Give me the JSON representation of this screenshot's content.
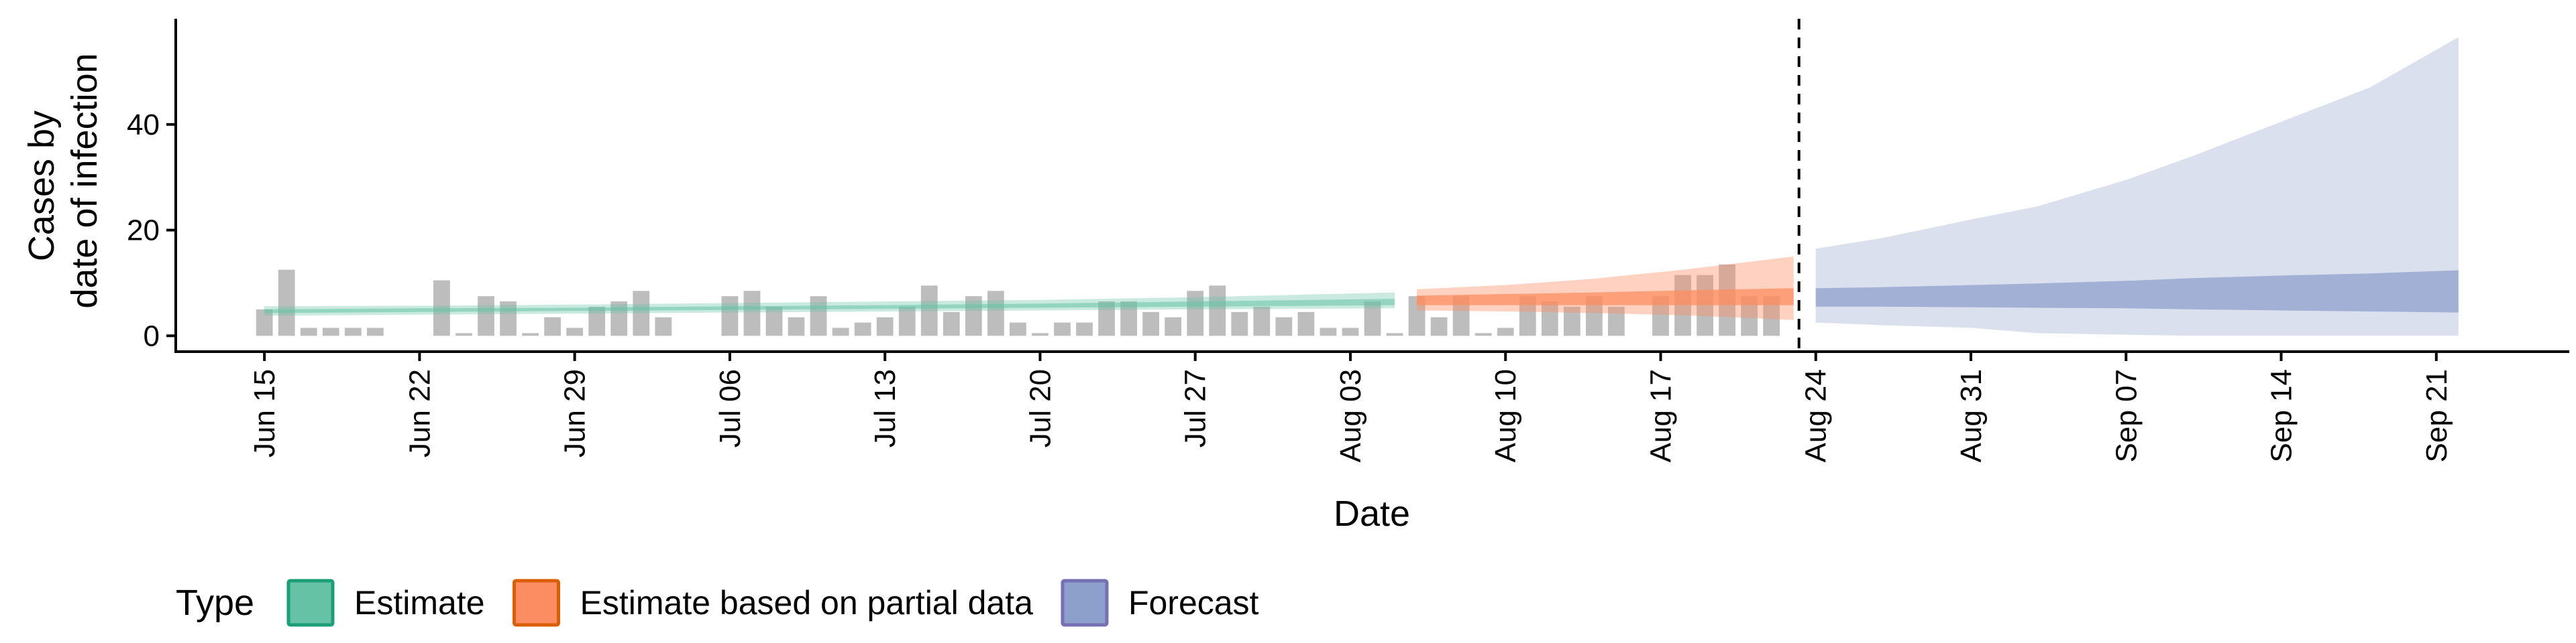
{
  "chart_data": {
    "type": "area",
    "xlabel": "Date",
    "ylabel_line1": "Cases by",
    "ylabel_line2": "date of infection",
    "x_range": [
      "2020-06-11",
      "2020-09-27"
    ],
    "ylim": [
      -3,
      60
    ],
    "y_ticks": [
      0,
      20,
      40
    ],
    "x_ticks": [
      {
        "date": "2020-06-15",
        "label": "Jun 15"
      },
      {
        "date": "2020-06-22",
        "label": "Jun 22"
      },
      {
        "date": "2020-06-29",
        "label": "Jun 29"
      },
      {
        "date": "2020-07-06",
        "label": "Jul 06"
      },
      {
        "date": "2020-07-13",
        "label": "Jul 13"
      },
      {
        "date": "2020-07-20",
        "label": "Jul 20"
      },
      {
        "date": "2020-07-27",
        "label": "Jul 27"
      },
      {
        "date": "2020-08-03",
        "label": "Aug 03"
      },
      {
        "date": "2020-08-10",
        "label": "Aug 10"
      },
      {
        "date": "2020-08-17",
        "label": "Aug 17"
      },
      {
        "date": "2020-08-24",
        "label": "Aug 24"
      },
      {
        "date": "2020-08-31",
        "label": "Aug 31"
      },
      {
        "date": "2020-09-07",
        "label": "Sep 07"
      },
      {
        "date": "2020-09-14",
        "label": "Sep 14"
      },
      {
        "date": "2020-09-21",
        "label": "Sep 21"
      }
    ],
    "cutoff_date": "2020-08-23",
    "bars": {
      "start_date": "2020-06-15",
      "color": "#bdbdbd",
      "values": [
        5,
        12.5,
        1.5,
        1.5,
        1.5,
        1.5,
        0,
        0,
        10.5,
        0.5,
        7.5,
        6.5,
        0.5,
        3.5,
        1.5,
        5.5,
        6.5,
        8.5,
        3.5,
        0,
        0,
        7.5,
        8.5,
        5.5,
        3.5,
        7.5,
        1.5,
        2.5,
        3.5,
        5.5,
        9.5,
        4.5,
        7.5,
        8.5,
        2.5,
        0.5,
        2.5,
        2.5,
        6.5,
        6.5,
        4.5,
        3.5,
        8.5,
        9.5,
        4.5,
        5.5,
        3.5,
        4.5,
        1.5,
        1.5,
        6.5,
        0.5,
        7.5,
        3.5,
        7.5,
        0.5,
        1.5,
        7.5,
        6.5,
        5.5,
        7.5,
        5.5,
        0,
        7.5,
        11.5,
        11.5,
        13.5,
        7.5,
        7.5
      ]
    },
    "series": [
      {
        "name": "Estimate",
        "fill": "#66c2a5",
        "stroke": "#1b9e77",
        "outer_opacity": 0.35,
        "inner_opacity": 0.55,
        "points": [
          {
            "date": "2020-06-15",
            "lo90": 3.8,
            "lo50": 4.3,
            "hi50": 5.0,
            "hi90": 5.6
          },
          {
            "date": "2020-06-22",
            "lo90": 4.0,
            "lo50": 4.5,
            "hi50": 5.2,
            "hi90": 5.7
          },
          {
            "date": "2020-06-29",
            "lo90": 4.2,
            "lo50": 4.7,
            "hi50": 5.3,
            "hi90": 5.9
          },
          {
            "date": "2020-07-06",
            "lo90": 4.4,
            "lo50": 4.9,
            "hi50": 5.6,
            "hi90": 6.2
          },
          {
            "date": "2020-07-13",
            "lo90": 4.6,
            "lo50": 5.1,
            "hi50": 5.8,
            "hi90": 6.5
          },
          {
            "date": "2020-07-20",
            "lo90": 4.8,
            "lo50": 5.3,
            "hi50": 6.1,
            "hi90": 6.8
          },
          {
            "date": "2020-07-27",
            "lo90": 5.0,
            "lo50": 5.5,
            "hi50": 6.5,
            "hi90": 7.3
          },
          {
            "date": "2020-08-05",
            "lo90": 5.2,
            "lo50": 5.8,
            "hi50": 7.0,
            "hi90": 8.2
          }
        ]
      },
      {
        "name": "Estimate based on partial data",
        "fill": "#fc8d62",
        "stroke": "#d95f02",
        "outer_opacity": 0.4,
        "inner_opacity": 0.75,
        "points": [
          {
            "date": "2020-08-06",
            "lo90": 4.8,
            "lo50": 5.8,
            "hi50": 7.6,
            "hi90": 8.8
          },
          {
            "date": "2020-08-10",
            "lo90": 4.6,
            "lo50": 5.8,
            "hi50": 7.9,
            "hi90": 9.6
          },
          {
            "date": "2020-08-14",
            "lo90": 4.3,
            "lo50": 5.8,
            "hi50": 8.2,
            "hi90": 10.8
          },
          {
            "date": "2020-08-18",
            "lo90": 3.9,
            "lo50": 5.8,
            "hi50": 8.6,
            "hi90": 12.5
          },
          {
            "date": "2020-08-23",
            "lo90": 3.0,
            "lo50": 5.8,
            "hi50": 9.0,
            "hi90": 15.0
          }
        ]
      },
      {
        "name": "Forecast",
        "fill": "#8da0cb",
        "stroke": "#7570b3",
        "outer_opacity": 0.32,
        "inner_opacity": 0.75,
        "points": [
          {
            "date": "2020-08-24",
            "lo90": 2.5,
            "lo50": 5.5,
            "hi50": 9.0,
            "hi90": 16.5
          },
          {
            "date": "2020-08-27",
            "lo90": 2.0,
            "lo50": 5.5,
            "hi50": 9.2,
            "hi90": 18.5
          },
          {
            "date": "2020-08-31",
            "lo90": 1.5,
            "lo50": 5.4,
            "hi50": 9.6,
            "hi90": 22.0
          },
          {
            "date": "2020-09-03",
            "lo90": 0.5,
            "lo50": 5.3,
            "hi50": 9.9,
            "hi90": 24.5
          },
          {
            "date": "2020-09-07",
            "lo90": 0.2,
            "lo50": 5.2,
            "hi50": 10.4,
            "hi90": 29.5
          },
          {
            "date": "2020-09-10",
            "lo90": 0,
            "lo50": 5.0,
            "hi50": 10.9,
            "hi90": 34.0
          },
          {
            "date": "2020-09-14",
            "lo90": 0,
            "lo50": 4.8,
            "hi50": 11.4,
            "hi90": 40.5
          },
          {
            "date": "2020-09-18",
            "lo90": 0,
            "lo50": 4.6,
            "hi50": 11.8,
            "hi90": 47.0
          },
          {
            "date": "2020-09-22",
            "lo90": 0,
            "lo50": 4.4,
            "hi50": 12.4,
            "hi90": 56.5
          }
        ]
      }
    ],
    "legend": {
      "position": "bottom-left",
      "title": "Type",
      "entries": [
        "Estimate",
        "Estimate based on partial data",
        "Forecast"
      ]
    }
  }
}
